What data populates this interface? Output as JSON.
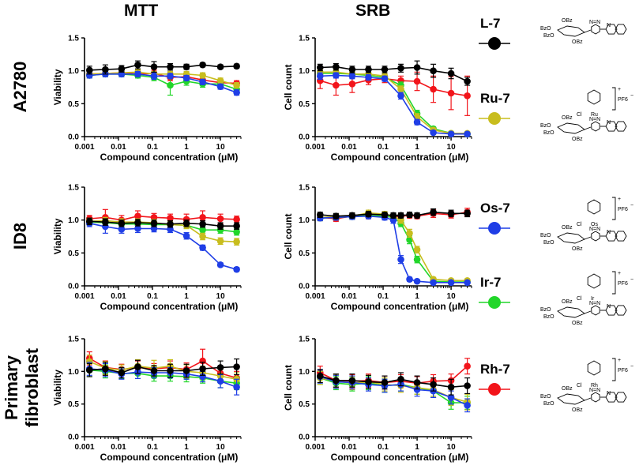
{
  "column_titles": [
    "MTT",
    "SRB"
  ],
  "row_titles": [
    "A2780",
    "ID8",
    "Primary fibroblast"
  ],
  "row_title_lines": {
    "A2780": [
      "A2780"
    ],
    "ID8": [
      "ID8"
    ],
    "Primary fibroblast": [
      "Primary",
      "fibroblast"
    ]
  },
  "compounds": [
    {
      "name": "L-7",
      "color": "#000000"
    },
    {
      "name": "Ru-7",
      "color": "#c8bd1e"
    },
    {
      "name": "Os-7",
      "color": "#1f3ee6"
    },
    {
      "name": "Ir-7",
      "color": "#22d62a"
    },
    {
      "name": "Rh-7",
      "color": "#f2141a"
    }
  ],
  "structure_labels": {
    "sugar": [
      "BzO",
      "BzO",
      "OBz",
      "OBz"
    ],
    "metal_symbols": [
      "Ru",
      "Os",
      "Ir",
      "Rh"
    ],
    "chloride": "Cl",
    "counterion": "PF6",
    "triazole": "N=N",
    "pyridine": "N",
    "charge_plus": "+",
    "charge_minus": "−"
  },
  "chart_data": [
    {
      "id": "A2780-MTT",
      "type": "line",
      "xscale": "log",
      "xlabel": "Compound concentration (μM)",
      "ylabel": "Viability",
      "ylim": [
        0.0,
        1.5
      ],
      "yticks": [
        "0.0",
        "0.5",
        "1.0",
        "1.5"
      ],
      "xlim": [
        0.001,
        40
      ],
      "xticks": [
        "0.001",
        "0.01",
        "0.1",
        "1",
        "10"
      ],
      "x": [
        0.0014,
        0.0041,
        0.0123,
        0.037,
        0.111,
        0.333,
        1.0,
        3.0,
        10.0,
        30.0
      ],
      "series": [
        {
          "name": "L-7",
          "values": [
            1.01,
            1.02,
            1.03,
            1.09,
            1.06,
            1.06,
            1.06,
            1.09,
            1.06,
            1.07
          ],
          "err": [
            0.06,
            0.07,
            0.05,
            0.06,
            0.08,
            0.05,
            0.04,
            0.03,
            0.03,
            0.03
          ]
        },
        {
          "name": "Ru-7",
          "values": [
            0.95,
            0.96,
            0.97,
            0.98,
            0.95,
            0.95,
            0.95,
            0.93,
            0.85,
            0.78
          ],
          "err": [
            0.04,
            0.04,
            0.04,
            0.04,
            0.04,
            0.04,
            0.04,
            0.04,
            0.04,
            0.04
          ]
        },
        {
          "name": "Os-7",
          "values": [
            0.93,
            0.95,
            0.95,
            0.95,
            0.92,
            0.92,
            0.89,
            0.83,
            0.76,
            0.67
          ],
          "err": [
            0.04,
            0.04,
            0.04,
            0.04,
            0.05,
            0.04,
            0.04,
            0.04,
            0.04,
            0.04
          ]
        },
        {
          "name": "Ir-7",
          "values": [
            0.93,
            0.95,
            0.95,
            0.93,
            0.9,
            0.78,
            0.84,
            0.8,
            0.8,
            0.72
          ],
          "err": [
            0.04,
            0.04,
            0.04,
            0.04,
            0.05,
            0.15,
            0.06,
            0.05,
            0.05,
            0.05
          ]
        },
        {
          "name": "Rh-7",
          "values": [
            0.95,
            0.96,
            0.97,
            0.95,
            0.96,
            0.9,
            0.91,
            0.86,
            0.82,
            0.81
          ],
          "err": [
            0.04,
            0.04,
            0.04,
            0.04,
            0.05,
            0.05,
            0.05,
            0.05,
            0.04,
            0.04
          ]
        }
      ]
    },
    {
      "id": "A2780-SRB",
      "type": "line",
      "xscale": "log",
      "xlabel": "Compound concentration (μM)",
      "ylabel": "Cell count",
      "ylim": [
        0.0,
        1.5
      ],
      "yticks": [
        "0.0",
        "0.5",
        "1.0",
        "1.5"
      ],
      "xlim": [
        0.001,
        40
      ],
      "xticks": [
        "0.001",
        "0.01",
        "0.1",
        "1",
        "10"
      ],
      "x": [
        0.0014,
        0.0041,
        0.0123,
        0.037,
        0.111,
        0.333,
        1.0,
        3.0,
        10.0,
        30.0
      ],
      "series": [
        {
          "name": "L-7",
          "values": [
            1.05,
            1.06,
            1.02,
            1.02,
            1.02,
            1.04,
            1.05,
            1.0,
            0.96,
            0.84
          ],
          "err": [
            0.05,
            0.05,
            0.05,
            0.05,
            0.05,
            0.06,
            0.1,
            0.1,
            0.08,
            0.06
          ]
        },
        {
          "name": "Ru-7",
          "values": [
            0.98,
            0.98,
            0.95,
            0.95,
            0.92,
            0.72,
            0.3,
            0.1,
            0.05,
            0.05
          ],
          "err": [
            0.04,
            0.04,
            0.04,
            0.04,
            0.04,
            0.05,
            0.05,
            0.03,
            0.02,
            0.02
          ]
        },
        {
          "name": "Os-7",
          "values": [
            0.92,
            0.93,
            0.92,
            0.9,
            0.88,
            0.62,
            0.22,
            0.06,
            0.04,
            0.04
          ],
          "err": [
            0.05,
            0.04,
            0.04,
            0.04,
            0.04,
            0.05,
            0.04,
            0.02,
            0.02,
            0.02
          ]
        },
        {
          "name": "Ir-7",
          "values": [
            0.96,
            0.96,
            0.95,
            0.93,
            0.9,
            0.78,
            0.35,
            0.12,
            0.05,
            0.04
          ],
          "err": [
            0.04,
            0.04,
            0.04,
            0.04,
            0.04,
            0.05,
            0.05,
            0.03,
            0.02,
            0.02
          ]
        },
        {
          "name": "Rh-7",
          "values": [
            0.85,
            0.78,
            0.8,
            0.86,
            0.88,
            0.85,
            0.84,
            0.72,
            0.66,
            0.62
          ],
          "err": [
            0.12,
            0.15,
            0.13,
            0.07,
            0.06,
            0.07,
            0.14,
            0.2,
            0.25,
            0.3
          ]
        }
      ]
    },
    {
      "id": "ID8-MTT",
      "type": "line",
      "xscale": "log",
      "xlabel": "Compound concentration (μM)",
      "ylabel": "Viability",
      "ylim": [
        0.0,
        1.5
      ],
      "yticks": [
        "0.0",
        "0.5",
        "1.0",
        "1.5"
      ],
      "xlim": [
        0.001,
        40
      ],
      "xticks": [
        "0.001",
        "0.01",
        "0.1",
        "1",
        "10"
      ],
      "x": [
        0.0014,
        0.0041,
        0.0123,
        0.037,
        0.111,
        0.333,
        1.0,
        3.0,
        10.0,
        30.0
      ],
      "series": [
        {
          "name": "L-7",
          "values": [
            0.98,
            0.97,
            0.95,
            0.96,
            0.95,
            0.94,
            0.95,
            0.94,
            0.91,
            0.91
          ],
          "err": [
            0.05,
            0.05,
            0.05,
            0.05,
            0.05,
            0.05,
            0.05,
            0.05,
            0.05,
            0.05
          ]
        },
        {
          "name": "Ru-7",
          "values": [
            0.98,
            0.99,
            0.97,
            0.97,
            0.96,
            0.93,
            0.92,
            0.75,
            0.68,
            0.67
          ],
          "err": [
            0.05,
            0.05,
            0.05,
            0.05,
            0.05,
            0.05,
            0.05,
            0.05,
            0.05,
            0.05
          ]
        },
        {
          "name": "Os-7",
          "values": [
            0.95,
            0.9,
            0.86,
            0.87,
            0.87,
            0.86,
            0.76,
            0.58,
            0.32,
            0.25
          ],
          "err": [
            0.05,
            0.1,
            0.06,
            0.06,
            0.05,
            0.05,
            0.05,
            0.04,
            0.03,
            0.03
          ]
        },
        {
          "name": "Ir-7",
          "values": [
            0.97,
            0.96,
            0.94,
            0.94,
            0.93,
            0.93,
            0.92,
            0.85,
            0.85,
            0.82
          ],
          "err": [
            0.05,
            0.05,
            0.05,
            0.05,
            0.05,
            0.05,
            0.05,
            0.05,
            0.05,
            0.05
          ]
        },
        {
          "name": "Rh-7",
          "values": [
            1.02,
            1.04,
            1.0,
            1.06,
            1.04,
            1.03,
            1.01,
            1.04,
            1.02,
            1.01
          ],
          "err": [
            0.05,
            0.12,
            0.07,
            0.08,
            0.06,
            0.06,
            0.08,
            0.1,
            0.07,
            0.05
          ]
        }
      ]
    },
    {
      "id": "ID8-SRB",
      "type": "line",
      "xscale": "log",
      "xlabel": "Compound concentration (μM)",
      "ylabel": "Cell count",
      "ylim": [
        0.0,
        1.5
      ],
      "yticks": [
        "0.0",
        "0.5",
        "1.0",
        "1.5"
      ],
      "xlim": [
        0.001,
        40
      ],
      "xticks": [
        "0.001",
        "0.01",
        "0.1",
        "1",
        "10"
      ],
      "x": [
        0.0014,
        0.0041,
        0.0123,
        0.037,
        0.111,
        0.2,
        0.333,
        0.6,
        1.0,
        3.0,
        10.0,
        30.0
      ],
      "series": [
        {
          "name": "L-7",
          "values": [
            1.08,
            1.06,
            1.07,
            1.09,
            1.08,
            1.07,
            1.07,
            1.08,
            1.07,
            1.12,
            1.1,
            1.1
          ],
          "err": [
            0.04,
            0.04,
            0.04,
            0.04,
            0.04,
            0.04,
            0.04,
            0.04,
            0.04,
            0.05,
            0.05,
            0.05
          ]
        },
        {
          "name": "Ru-7",
          "values": [
            1.04,
            1.05,
            1.06,
            1.11,
            1.09,
            1.06,
            1.0,
            0.8,
            0.55,
            0.1,
            0.08,
            0.08
          ],
          "err": [
            0.04,
            0.04,
            0.04,
            0.04,
            0.04,
            0.04,
            0.05,
            0.06,
            0.05,
            0.03,
            0.02,
            0.02
          ]
        },
        {
          "name": "Os-7",
          "values": [
            1.03,
            1.04,
            1.05,
            1.06,
            1.04,
            1.0,
            0.4,
            0.1,
            0.07,
            0.05,
            0.05,
            0.05
          ],
          "err": [
            0.04,
            0.04,
            0.04,
            0.04,
            0.04,
            0.05,
            0.06,
            0.03,
            0.02,
            0.02,
            0.02,
            0.02
          ]
        },
        {
          "name": "Ir-7",
          "values": [
            1.03,
            1.04,
            1.05,
            1.07,
            1.06,
            1.04,
            0.95,
            0.7,
            0.4,
            0.07,
            0.06,
            0.06
          ],
          "err": [
            0.04,
            0.04,
            0.04,
            0.04,
            0.04,
            0.04,
            0.05,
            0.06,
            0.05,
            0.02,
            0.02,
            0.02
          ]
        },
        {
          "name": "Rh-7",
          "values": [
            1.04,
            1.02,
            1.06,
            1.06,
            1.05,
            1.05,
            1.06,
            1.07,
            1.06,
            1.1,
            1.08,
            1.12
          ],
          "err": [
            0.05,
            0.04,
            0.04,
            0.04,
            0.04,
            0.04,
            0.04,
            0.04,
            0.04,
            0.06,
            0.05,
            0.06
          ]
        }
      ]
    },
    {
      "id": "Fibroblast-MTT",
      "type": "line",
      "xscale": "log",
      "xlabel": "Compound concentration (μM)",
      "ylabel": "Viability",
      "ylim": [
        0.0,
        1.5
      ],
      "yticks": [
        "0.0",
        "0.5",
        "1.0",
        "1.5"
      ],
      "xlim": [
        0.001,
        40
      ],
      "xticks": [
        "0.001",
        "0.01",
        "0.1",
        "1",
        "10"
      ],
      "x": [
        0.0014,
        0.0041,
        0.0123,
        0.037,
        0.111,
        0.333,
        1.0,
        3.0,
        10.0,
        30.0
      ],
      "series": [
        {
          "name": "L-7",
          "values": [
            1.02,
            1.04,
            0.98,
            1.07,
            1.01,
            1.01,
            1.01,
            1.04,
            1.06,
            1.07
          ],
          "err": [
            0.1,
            0.1,
            0.08,
            0.1,
            0.08,
            0.1,
            0.1,
            0.1,
            0.1,
            0.12
          ]
        },
        {
          "name": "Ru-7",
          "values": [
            1.15,
            1.05,
            1.02,
            1.08,
            1.05,
            1.08,
            1.0,
            0.98,
            0.93,
            0.88
          ],
          "err": [
            0.1,
            0.1,
            0.08,
            0.1,
            0.12,
            0.1,
            0.1,
            0.1,
            0.1,
            0.1
          ]
        },
        {
          "name": "Os-7",
          "values": [
            1.04,
            1.02,
            0.96,
            0.99,
            0.98,
            0.98,
            0.96,
            0.92,
            0.85,
            0.76
          ],
          "err": [
            0.1,
            0.1,
            0.08,
            0.1,
            0.08,
            0.08,
            0.08,
            0.08,
            0.1,
            0.12
          ]
        },
        {
          "name": "Ir-7",
          "values": [
            1.02,
            1.0,
            0.97,
            0.97,
            0.93,
            0.93,
            0.92,
            0.9,
            0.85,
            0.82
          ],
          "err": [
            0.1,
            0.1,
            0.08,
            0.08,
            0.08,
            0.08,
            0.08,
            0.08,
            0.1,
            0.1
          ]
        },
        {
          "name": "Rh-7",
          "values": [
            1.2,
            1.06,
            1.03,
            1.06,
            1.04,
            1.06,
            1.03,
            1.16,
            0.97,
            0.9
          ],
          "err": [
            0.1,
            0.1,
            0.08,
            0.1,
            0.08,
            0.1,
            0.1,
            0.18,
            0.1,
            0.1
          ]
        }
      ]
    },
    {
      "id": "Fibroblast-SRB",
      "type": "line",
      "xscale": "log",
      "xlabel": "Compound concentration (μM)",
      "ylabel": "Cell count",
      "ylim": [
        0.0,
        1.5
      ],
      "yticks": [
        "0.0",
        "0.5",
        "1.0",
        "1.5"
      ],
      "xlim": [
        0.001,
        40
      ],
      "xticks": [
        "0.001",
        "0.01",
        "0.1",
        "1",
        "10"
      ],
      "x": [
        0.0014,
        0.0041,
        0.0123,
        0.037,
        0.111,
        0.333,
        1.0,
        3.0,
        10.0,
        30.0
      ],
      "series": [
        {
          "name": "L-7",
          "values": [
            0.93,
            0.86,
            0.86,
            0.84,
            0.83,
            0.88,
            0.83,
            0.8,
            0.76,
            0.78
          ],
          "err": [
            0.1,
            0.1,
            0.1,
            0.1,
            0.1,
            0.1,
            0.1,
            0.1,
            0.12,
            0.12
          ]
        },
        {
          "name": "Ru-7",
          "values": [
            0.9,
            0.85,
            0.82,
            0.84,
            0.8,
            0.78,
            0.75,
            0.72,
            0.6,
            0.53
          ],
          "err": [
            0.1,
            0.1,
            0.1,
            0.1,
            0.1,
            0.1,
            0.1,
            0.1,
            0.12,
            0.12
          ]
        },
        {
          "name": "Os-7",
          "values": [
            0.92,
            0.84,
            0.83,
            0.8,
            0.78,
            0.8,
            0.72,
            0.7,
            0.6,
            0.48
          ],
          "err": [
            0.1,
            0.1,
            0.1,
            0.1,
            0.1,
            0.1,
            0.1,
            0.1,
            0.1,
            0.1
          ]
        },
        {
          "name": "Ir-7",
          "values": [
            0.9,
            0.82,
            0.8,
            0.82,
            0.78,
            0.8,
            0.75,
            0.7,
            0.52,
            0.52
          ],
          "err": [
            0.1,
            0.1,
            0.1,
            0.1,
            0.1,
            0.1,
            0.1,
            0.1,
            0.1,
            0.1
          ]
        },
        {
          "name": "Rh-7",
          "values": [
            0.98,
            0.86,
            0.85,
            0.86,
            0.83,
            0.85,
            0.82,
            0.85,
            0.86,
            1.08
          ],
          "err": [
            0.1,
            0.1,
            0.1,
            0.1,
            0.1,
            0.1,
            0.1,
            0.1,
            0.1,
            0.12
          ]
        }
      ]
    }
  ]
}
